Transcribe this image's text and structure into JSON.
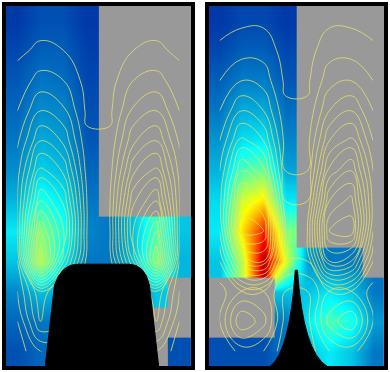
{
  "chart_data": [
    {
      "type": "heatmap",
      "tick_labels": false,
      "color": "Jet",
      "zlim": [
        0,
        1
      ],
      "cells": [
        [
          0.15,
          0.18,
          0.2,
          0.2,
          0.2,
          0.2,
          null,
          0.15
        ],
        [
          0.18,
          0.2,
          0.2,
          0.2,
          0.2,
          0.2,
          null,
          null
        ],
        [
          0.22,
          0.3,
          0.25,
          0.2,
          0.2,
          0.25,
          0.3,
          null
        ],
        [
          0.3,
          0.55,
          0.35,
          0.2,
          0.2,
          0.3,
          0.5,
          0.28
        ],
        [
          0.35,
          0.5,
          0.4,
          0.22,
          0.2,
          0.3,
          0.45,
          0.3
        ],
        [
          0.28,
          0.4,
          0.35,
          0.2,
          null,
          null,
          null,
          null
        ],
        [
          0.23,
          0.32,
          0.29,
          0.18,
          null,
          null,
          null,
          null
        ],
        [
          0.2,
          0.27,
          0.25,
          0.16,
          null,
          null,
          null,
          null
        ],
        [
          0.18,
          0.23,
          0.22,
          0.15,
          null,
          null,
          null,
          null
        ],
        [
          0.16,
          0.2,
          0.19,
          0.14,
          null,
          null,
          null,
          null
        ],
        [
          0.14,
          0.17,
          0.17,
          0.13,
          null,
          null,
          null,
          null
        ],
        [
          0.12,
          0.15,
          0.15,
          0.12,
          null,
          null,
          null,
          null
        ]
      ],
      "lines": [
        [
          0.02,
          0.1,
          0.1,
          0.02,
          0.02,
          0.1,
          0.1,
          0.02
        ],
        [
          0.05,
          0.25,
          0.2,
          0.05,
          0.05,
          0.2,
          0.25,
          0.05
        ],
        [
          0.1,
          0.3,
          0.15,
          0.05,
          0.05,
          0.15,
          0.3,
          0.1
        ],
        [
          0.15,
          0.8,
          0.4,
          0.08,
          0.08,
          0.4,
          0.8,
          0.15
        ],
        [
          0.2,
          0.7,
          0.5,
          0.1,
          0.1,
          0.5,
          0.7,
          0.2
        ],
        [
          0.2,
          0.55,
          0.44,
          0.1,
          0.1,
          0.44,
          0.55,
          0.2
        ],
        [
          0.18,
          0.42,
          0.34,
          0.08,
          0.08,
          0.34,
          0.42,
          0.18
        ],
        [
          0.14,
          0.3,
          0.24,
          0.06,
          0.06,
          0.24,
          0.3,
          0.14
        ],
        [
          0.1,
          0.2,
          0.16,
          0.04,
          0.04,
          0.16,
          0.2,
          0.1
        ],
        [
          0.07,
          0.12,
          0.1,
          0.03,
          0.03,
          0.1,
          0.12,
          0.07
        ],
        [
          0.04,
          0.06,
          0.05,
          0.02,
          0.02,
          0.05,
          0.06,
          0.04
        ],
        [
          0.02,
          0.03,
          0.03,
          0.01,
          0.01,
          0.03,
          0.03,
          0.02
        ]
      ],
      "line_levels": {
        "start": 0.05,
        "end": 0.8,
        "size": 0.05
      }
    },
    {
      "type": "heatmap",
      "tick_labels": false,
      "color": "Jet",
      "zlim": [
        0,
        1
      ],
      "cells": [
        [
          0.15,
          0.15,
          0.15,
          0.2,
          0.3,
          0.35,
          0.3,
          0.2
        ],
        [
          null,
          null,
          null,
          0.2,
          0.35,
          0.45,
          0.4,
          0.25
        ],
        [
          null,
          null,
          null,
          0.3,
          0.3,
          0.35,
          0.3,
          0.2
        ],
        [
          0.3,
          0.55,
          0.95,
          0.6,
          0.25,
          0.2,
          0.2,
          null
        ],
        [
          0.35,
          0.65,
          0.85,
          0.5,
          null,
          null,
          null,
          null
        ],
        [
          0.33,
          0.58,
          0.65,
          0.35,
          null,
          null,
          null,
          null
        ],
        [
          0.28,
          0.45,
          0.48,
          0.26,
          null,
          null,
          null,
          null
        ],
        [
          0.24,
          0.34,
          0.35,
          0.22,
          null,
          null,
          null,
          null
        ],
        [
          0.2,
          0.27,
          0.27,
          0.19,
          null,
          null,
          null,
          null
        ],
        [
          0.17,
          0.21,
          0.21,
          0.16,
          null,
          null,
          null,
          null
        ],
        [
          0.14,
          0.17,
          0.17,
          0.14,
          null,
          null,
          null,
          null
        ],
        [
          0.12,
          0.14,
          0.14,
          0.12,
          null,
          null,
          null,
          null
        ]
      ],
      "lines": [
        [
          0.05,
          0.12,
          0.1,
          0.02,
          0.02,
          0.1,
          0.12,
          0.05
        ],
        [
          0.1,
          0.3,
          0.22,
          0.03,
          0.03,
          0.22,
          0.3,
          0.1
        ],
        [
          0.08,
          0.15,
          0.15,
          0.05,
          0.05,
          0.15,
          0.15,
          0.08
        ],
        [
          0.15,
          0.45,
          0.5,
          0.15,
          0.15,
          0.5,
          0.45,
          0.15
        ],
        [
          0.25,
          0.68,
          0.65,
          0.2,
          0.2,
          0.65,
          0.68,
          0.25
        ],
        [
          0.28,
          0.62,
          0.55,
          0.15,
          0.15,
          0.55,
          0.62,
          0.28
        ],
        [
          0.25,
          0.5,
          0.42,
          0.1,
          0.1,
          0.42,
          0.5,
          0.25
        ],
        [
          0.2,
          0.37,
          0.3,
          0.08,
          0.08,
          0.3,
          0.37,
          0.2
        ],
        [
          0.15,
          0.25,
          0.2,
          0.06,
          0.06,
          0.2,
          0.25,
          0.15
        ],
        [
          0.1,
          0.15,
          0.13,
          0.04,
          0.04,
          0.13,
          0.15,
          0.1
        ],
        [
          0.06,
          0.08,
          0.08,
          0.03,
          0.03,
          0.08,
          0.08,
          0.06
        ],
        [
          0.03,
          0.04,
          0.04,
          0.02,
          0.02,
          0.04,
          0.04,
          0.03
        ]
      ],
      "line_levels": {
        "start": 0.05,
        "end": 0.8,
        "size": 0.05
      }
    }
  ]
}
